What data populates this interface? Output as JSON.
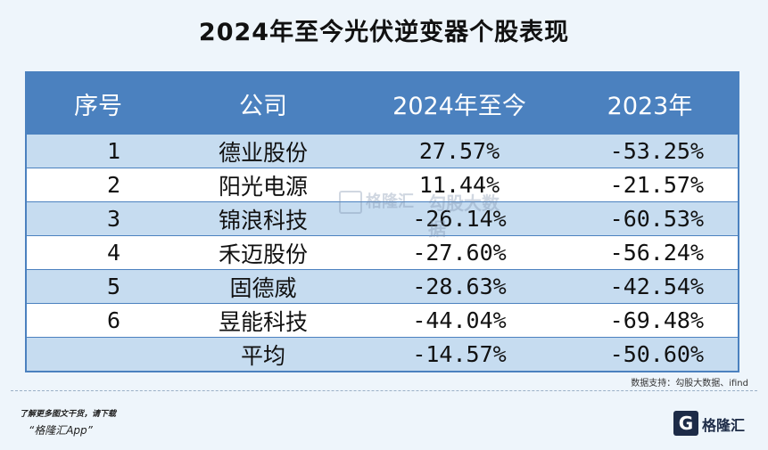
{
  "title": "2024年至今光伏逆变器个股表现",
  "table": {
    "headers": [
      "序号",
      "公司",
      "2024年至今",
      "2023年"
    ],
    "rows": [
      {
        "idx": "1",
        "name": "德业股份",
        "ytd": "27.57%",
        "y2023": "-53.25%"
      },
      {
        "idx": "2",
        "name": "阳光电源",
        "ytd": "11.44%",
        "y2023": "-21.57%"
      },
      {
        "idx": "3",
        "name": "锦浪科技",
        "ytd": "-26.14%",
        "y2023": "-60.53%"
      },
      {
        "idx": "4",
        "name": "禾迈股份",
        "ytd": "-27.60%",
        "y2023": "-56.24%"
      },
      {
        "idx": "5",
        "name": "固德威",
        "ytd": "-28.63%",
        "y2023": "-42.54%"
      },
      {
        "idx": "6",
        "name": "昱能科技",
        "ytd": "-44.04%",
        "y2023": "-69.48%"
      },
      {
        "idx": "",
        "name": "平均",
        "ytd": "-14.57%",
        "y2023": "-50.60%"
      }
    ]
  },
  "source": "数据支持：勾股大数据、ifind",
  "promo": {
    "line1": "了解更多图文干货，请下载",
    "line2": "“格隆汇App”"
  },
  "logo": {
    "mark": "G",
    "text": "格隆汇"
  },
  "watermark": {
    "left": "格隆汇",
    "right": "勾股大数据"
  },
  "colors": {
    "header_bg": "#4b81bf",
    "row_odd": "#c6dcf0",
    "row_even": "#ffffff",
    "page_bg": "#eef5fb"
  }
}
